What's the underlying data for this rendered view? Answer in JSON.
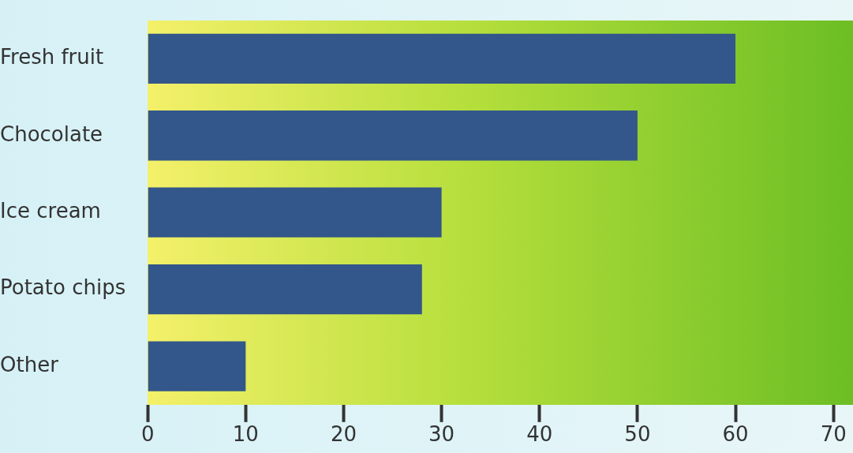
{
  "chart_data": {
    "type": "bar",
    "orientation": "horizontal",
    "categories": [
      "Fresh fruit",
      "Chocolate",
      "Ice cream",
      "Potato chips",
      "Other"
    ],
    "values": [
      60,
      50,
      30,
      28,
      10
    ],
    "color": "#33578a",
    "xlim": [
      0,
      72
    ],
    "xticks": [
      0,
      10,
      20,
      30,
      40,
      50,
      60,
      70
    ],
    "grid": false,
    "legend": false
  }
}
